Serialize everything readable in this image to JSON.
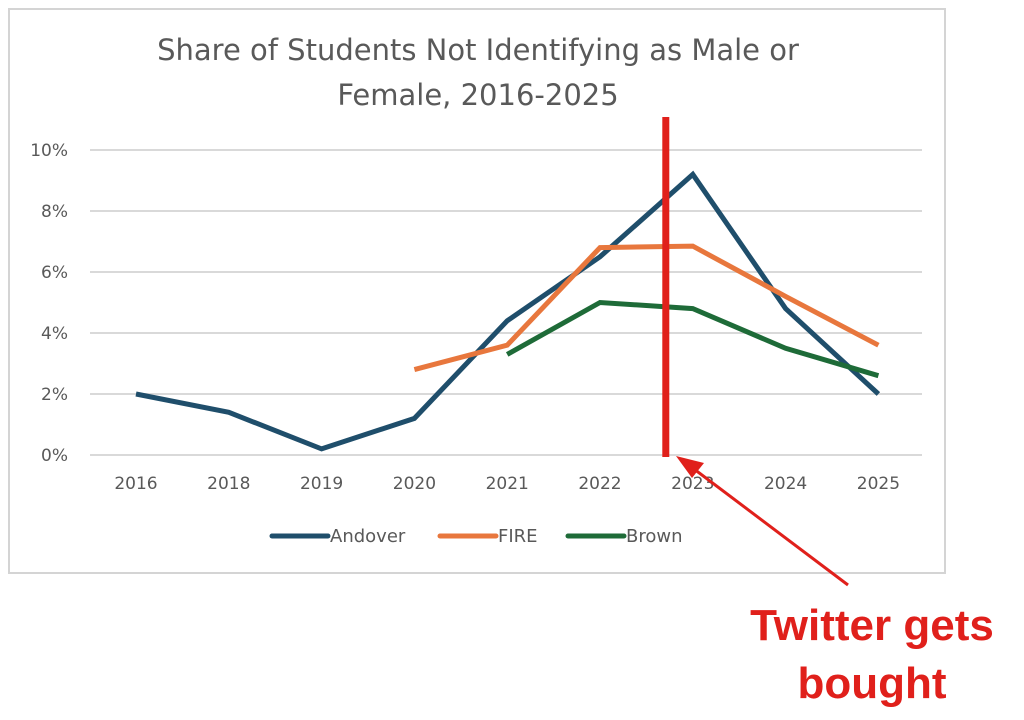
{
  "chart_data": {
    "type": "line",
    "title_lines": [
      "Share of Students Not Identifying as Male or",
      "Female, 2016-2025"
    ],
    "categories": [
      "2016",
      "2018",
      "2019",
      "2020",
      "2021",
      "2022",
      "2023",
      "2024",
      "2025"
    ],
    "y_ticks": [
      "0%",
      "2%",
      "4%",
      "6%",
      "8%",
      "10%"
    ],
    "ylim": [
      0,
      10
    ],
    "grid": true,
    "legend_position": "bottom",
    "series": [
      {
        "name": "Andover",
        "color": "#1f4e6b",
        "values": [
          2.0,
          1.4,
          0.2,
          1.2,
          4.4,
          6.5,
          9.2,
          4.8,
          2.0
        ]
      },
      {
        "name": "FIRE",
        "color": "#e8773d",
        "values": [
          null,
          null,
          null,
          2.8,
          3.6,
          6.8,
          6.85,
          5.2,
          3.6
        ]
      },
      {
        "name": "Brown",
        "color": "#1e6b38",
        "values": [
          null,
          null,
          null,
          null,
          3.3,
          5.0,
          4.8,
          3.5,
          2.6
        ]
      }
    ],
    "annotation": {
      "marker_category": "2023",
      "marker_color": "#e0201b",
      "text_lines": [
        "Twitter gets",
        "bought"
      ]
    }
  }
}
